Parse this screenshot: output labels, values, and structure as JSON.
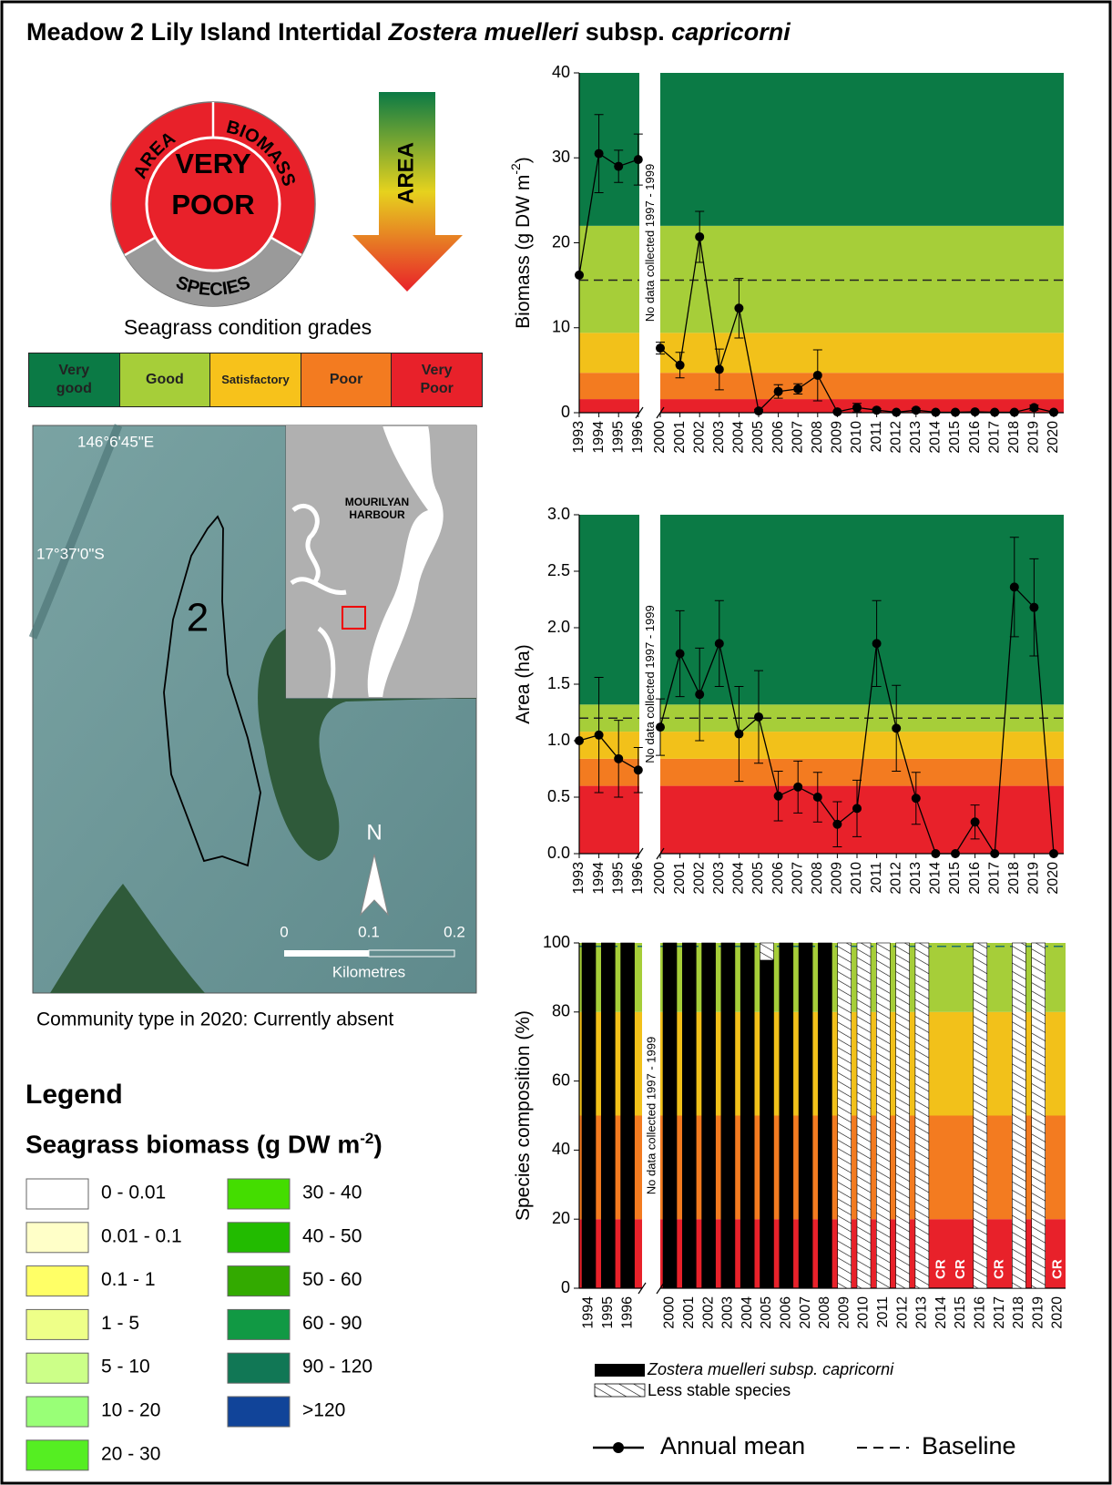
{
  "title": {
    "main": "Meadow 2 Lily Island Intertidal",
    "genus": "Zostera muelleri",
    "subsp": "subsp.",
    "variety": "capricorni"
  },
  "wheel": {
    "center": [
      "VERY",
      "POOR"
    ],
    "area": "AREA",
    "biomass": "BIOMASS",
    "species": "SPECIES",
    "arrow": "AREA"
  },
  "grades": {
    "title": "Seagrass condition grades",
    "items": [
      {
        "label": "Very good",
        "color": "#0b7a45"
      },
      {
        "label": "Good",
        "color": "#a6ce39"
      },
      {
        "label": "Satisfactory",
        "color": "#f7c21b"
      },
      {
        "label": "Poor",
        "color": "#f37b20"
      },
      {
        "label": "Very Poor",
        "color": "#e8212a"
      }
    ]
  },
  "map": {
    "lon": "146°6'45\"E",
    "lat": "17°37'0\"S",
    "meadow": "2",
    "harbour": [
      "MOURILYAN",
      "HARBOUR"
    ],
    "north": "N",
    "scale": [
      "0",
      "0.1",
      "0.2"
    ],
    "scale_unit": "Kilometres",
    "caption": "Community type in 2020: Currently absent"
  },
  "legend": {
    "title": "Legend",
    "heading": "Seagrass biomass (g DW m",
    "heading_sup": "-2",
    "heading_end": ")",
    "classes": [
      {
        "label": "0 - 0.01",
        "color": "#ffffff"
      },
      {
        "label": "0.01 - 0.1",
        "color": "#ffffc8"
      },
      {
        "label": "0.1 - 1",
        "color": "#ffff66"
      },
      {
        "label": "1 - 5",
        "color": "#eeff88"
      },
      {
        "label": "5 - 10",
        "color": "#ccff88"
      },
      {
        "label": "10 - 20",
        "color": "#99ff77"
      },
      {
        "label": "20 - 30",
        "color": "#55ee22"
      },
      {
        "label": "30 - 40",
        "color": "#44dd00"
      },
      {
        "label": "40 - 50",
        "color": "#22bb00"
      },
      {
        "label": "50 - 60",
        "color": "#33aa00"
      },
      {
        "label": "60 - 90",
        "color": "#119944"
      },
      {
        "label": "90 - 120",
        "color": "#117755"
      },
      {
        "label": ">120",
        "color": "#114499"
      }
    ]
  },
  "chart_data": [
    {
      "type": "line",
      "ylabel": "Biomass (g DW m",
      "ylabel_sup": "-2",
      "ylabel_end": ")",
      "annotation": "No data collected 1997 - 1999",
      "x": [
        1993,
        1994,
        1995,
        1996,
        2000,
        2001,
        2002,
        2003,
        2004,
        2005,
        2006,
        2007,
        2008,
        2009,
        2010,
        2011,
        2012,
        2013,
        2014,
        2015,
        2016,
        2017,
        2018,
        2019,
        2020
      ],
      "series": [
        {
          "name": "Annual mean",
          "color": "#000000",
          "values": [
            16.2,
            30.5,
            29.0,
            29.8,
            7.6,
            5.6,
            20.7,
            5.1,
            12.3,
            0.2,
            2.5,
            2.8,
            4.4,
            0.1,
            0.6,
            0.3,
            0.05,
            0.3,
            0.05,
            0.05,
            0.1,
            0.05,
            0.05,
            0.6,
            0.05
          ],
          "errors": [
            null,
            4.6,
            1.9,
            3.0,
            0.7,
            1.5,
            3.0,
            2.4,
            3.5,
            0.2,
            0.8,
            0.6,
            3.0,
            0.1,
            0.5,
            0.2,
            0.1,
            0.2,
            0.1,
            0.1,
            0.1,
            0.1,
            0.1,
            0.3,
            0.1
          ]
        }
      ],
      "baseline": 15.6,
      "baseline_label": "Baseline",
      "bands": [
        {
          "from": 0,
          "to": 1.6,
          "color": "#e8212a"
        },
        {
          "from": 1.6,
          "to": 4.7,
          "color": "#f37b20"
        },
        {
          "from": 4.7,
          "to": 9.4,
          "color": "#f2c11a"
        },
        {
          "from": 9.4,
          "to": 22,
          "color": "#a6ce39"
        },
        {
          "from": 22,
          "to": 40,
          "color": "#0b7a45"
        }
      ],
      "ylim": [
        0,
        40
      ],
      "yticks": [
        0,
        10,
        20,
        30,
        40
      ]
    },
    {
      "type": "line",
      "ylabel": "Area (ha)",
      "annotation": "No data collected 1997 - 1999",
      "x": [
        1993,
        1994,
        1995,
        1996,
        2000,
        2001,
        2002,
        2003,
        2004,
        2005,
        2006,
        2007,
        2008,
        2009,
        2010,
        2011,
        2012,
        2013,
        2014,
        2015,
        2016,
        2017,
        2018,
        2019,
        2020
      ],
      "series": [
        {
          "color": "#000000",
          "values": [
            1.0,
            1.05,
            0.84,
            0.74,
            1.12,
            1.77,
            1.41,
            1.86,
            1.06,
            1.21,
            0.51,
            0.59,
            0.5,
            0.26,
            0.4,
            1.86,
            1.11,
            0.49,
            0,
            0,
            0.28,
            0,
            2.36,
            2.18,
            0
          ],
          "errors": [
            null,
            0.51,
            0.34,
            0.2,
            0.25,
            0.38,
            0.41,
            0.38,
            0.42,
            0.41,
            0.22,
            0.23,
            0.22,
            0.2,
            0.25,
            0.38,
            0.38,
            0.23,
            null,
            null,
            0.15,
            null,
            0.44,
            0.43,
            null
          ]
        }
      ],
      "baseline": 1.2,
      "bands": [
        {
          "from": 0,
          "to": 0.6,
          "color": "#e8212a"
        },
        {
          "from": 0.6,
          "to": 0.84,
          "color": "#f37b20"
        },
        {
          "from": 0.84,
          "to": 1.08,
          "color": "#f2c11a"
        },
        {
          "from": 1.08,
          "to": 1.32,
          "color": "#a6ce39"
        },
        {
          "from": 1.32,
          "to": 3,
          "color": "#0b7a45"
        }
      ],
      "ylim": [
        0,
        3
      ],
      "yticks": [
        {
          "value": 0,
          "label": "0.0"
        },
        {
          "value": 0.5,
          "label": "0.5"
        },
        {
          "value": 1,
          "label": "1.0"
        },
        {
          "value": 1.5,
          "label": "1.5"
        },
        {
          "value": 2,
          "label": "2.0"
        },
        {
          "value": 2.5,
          "label": "2.5"
        },
        {
          "value": 3,
          "label": "3.0"
        }
      ]
    },
    {
      "type": "stacked_bar",
      "ylabel": "Species composition (%)",
      "annotation": "No data collected 1997 - 1999",
      "categories": [
        "1994",
        "1995",
        "1996",
        "2000",
        "2001",
        "2002",
        "2003",
        "2004",
        "2005",
        "2006",
        "2007",
        "2008",
        "2009",
        "2010",
        "2011",
        "2012",
        "2013",
        "2014",
        "2015",
        "2016",
        "2017",
        "2018",
        "2019",
        "2020"
      ],
      "series": [
        {
          "name": "Zostera muelleri subsp. capricorni",
          "color": "#000000",
          "values": [
            100,
            100,
            100,
            100,
            100,
            100,
            100,
            100,
            95,
            100,
            100,
            100,
            0,
            0,
            0,
            0,
            0,
            0,
            0,
            0,
            0,
            0,
            0,
            0
          ]
        },
        {
          "name": "Less stable species",
          "color": "#ffffff",
          "hatch": true,
          "values": [
            0,
            0,
            0,
            0,
            0,
            0,
            0,
            0,
            5,
            0,
            0,
            0,
            100,
            100,
            100,
            100,
            100,
            0,
            0,
            100,
            0,
            100,
            100,
            0
          ]
        }
      ],
      "notes": [
        null,
        null,
        null,
        null,
        null,
        null,
        null,
        null,
        null,
        null,
        null,
        null,
        null,
        null,
        null,
        null,
        null,
        "CR",
        "CR",
        null,
        "CR",
        null,
        null,
        "CR"
      ],
      "baseline": 99,
      "bands": [
        {
          "from": 0,
          "to": 20,
          "color": "#e8212a"
        },
        {
          "from": 20,
          "to": 50,
          "color": "#f37b20"
        },
        {
          "from": 50,
          "to": 80,
          "color": "#f2c11a"
        },
        {
          "from": 80,
          "to": 100,
          "color": "#a6ce39"
        }
      ],
      "ylim": [
        0,
        100
      ],
      "yticks": [
        0,
        20,
        40,
        60,
        80,
        100
      ]
    }
  ]
}
